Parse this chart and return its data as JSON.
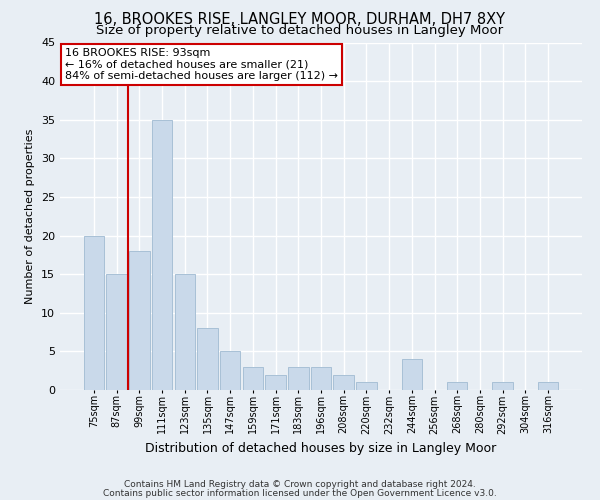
{
  "title": "16, BROOKES RISE, LANGLEY MOOR, DURHAM, DH7 8XY",
  "subtitle": "Size of property relative to detached houses in Langley Moor",
  "xlabel": "Distribution of detached houses by size in Langley Moor",
  "ylabel": "Number of detached properties",
  "footnote1": "Contains HM Land Registry data © Crown copyright and database right 2024.",
  "footnote2": "Contains public sector information licensed under the Open Government Licence v3.0.",
  "categories": [
    "75sqm",
    "87sqm",
    "99sqm",
    "111sqm",
    "123sqm",
    "135sqm",
    "147sqm",
    "159sqm",
    "171sqm",
    "183sqm",
    "196sqm",
    "208sqm",
    "220sqm",
    "232sqm",
    "244sqm",
    "256sqm",
    "268sqm",
    "280sqm",
    "292sqm",
    "304sqm",
    "316sqm"
  ],
  "values": [
    20,
    15,
    18,
    35,
    15,
    8,
    5,
    3,
    2,
    3,
    3,
    2,
    1,
    0,
    4,
    0,
    1,
    0,
    1,
    0,
    1
  ],
  "bar_color": "#c9d9ea",
  "bar_edge_color": "#a8c0d6",
  "annotation_text1": "16 BROOKES RISE: 93sqm",
  "annotation_text2": "← 16% of detached houses are smaller (21)",
  "annotation_text3": "84% of semi-detached houses are larger (112) →",
  "annotation_box_facecolor": "#ffffff",
  "annotation_border_color": "#cc0000",
  "red_line_color": "#cc0000",
  "ylim": [
    0,
    45
  ],
  "yticks": [
    0,
    5,
    10,
    15,
    20,
    25,
    30,
    35,
    40,
    45
  ],
  "title_fontsize": 10.5,
  "subtitle_fontsize": 9.5,
  "ylabel_fontsize": 8,
  "xlabel_fontsize": 9,
  "tick_fontsize": 8,
  "xtick_fontsize": 7,
  "annotation_fontsize": 8,
  "footnote_fontsize": 6.5,
  "bg_color": "#e8eef4",
  "plot_bg_color": "#e8eef4",
  "grid_color": "#ffffff",
  "property_bin_index": 1.5
}
